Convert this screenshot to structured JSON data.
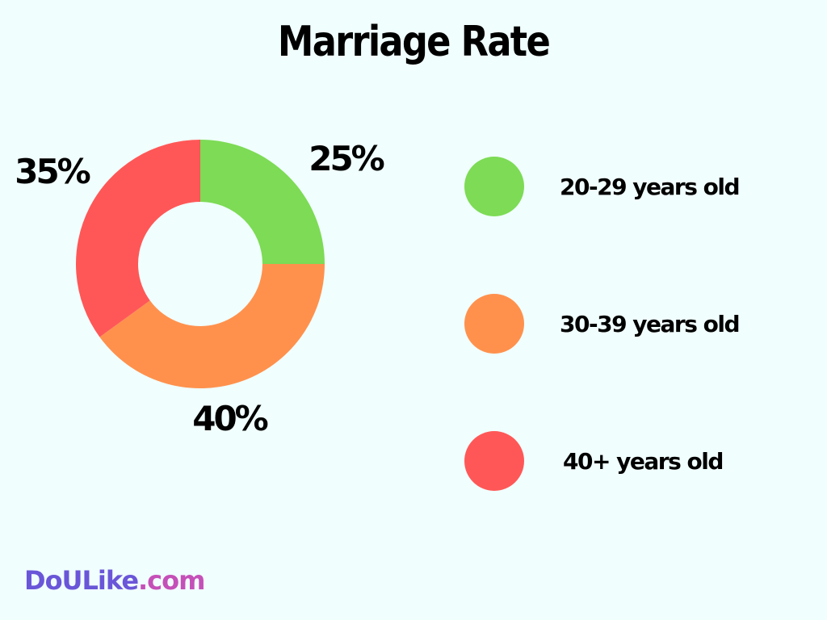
{
  "chart_data": {
    "type": "pie",
    "title": "Marriage Rate",
    "categories": [
      "20-29 years old",
      "30-39 years old",
      "40+ years old"
    ],
    "values": [
      25,
      40,
      35
    ],
    "value_labels": [
      "25%",
      "40%",
      "35%"
    ],
    "colors": [
      "#7ddb55",
      "#ff914d",
      "#ff5757"
    ],
    "donut": true,
    "legend_position": "right"
  },
  "brand": {
    "part1": "DoULike",
    "part2": ".com"
  }
}
